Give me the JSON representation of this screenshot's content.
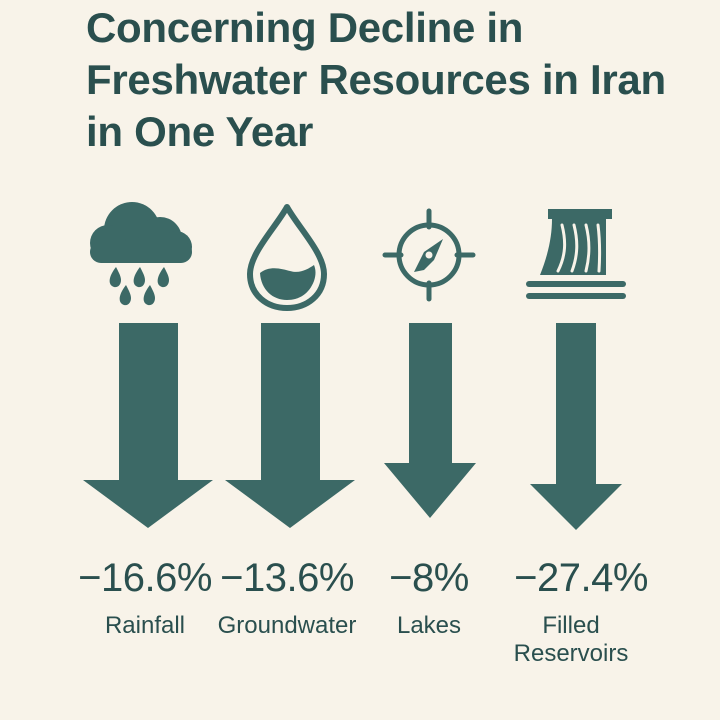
{
  "title": "Concerning Decline in Freshwater Resources in Iran in One Year",
  "colors": {
    "background": "#f8f3e9",
    "primary": "#3c6966",
    "text": "#2a4f4e"
  },
  "items": [
    {
      "icon": "rain-cloud-icon",
      "value": "−16.6%",
      "label": "Rainfall"
    },
    {
      "icon": "water-drop-icon",
      "value": "−13.6%",
      "label": "Groundwater"
    },
    {
      "icon": "compass-icon",
      "value": "−8%",
      "label": "Lakes"
    },
    {
      "icon": "dam-icon",
      "value": "−27.4%",
      "label": "Filled Reservoirs"
    }
  ]
}
